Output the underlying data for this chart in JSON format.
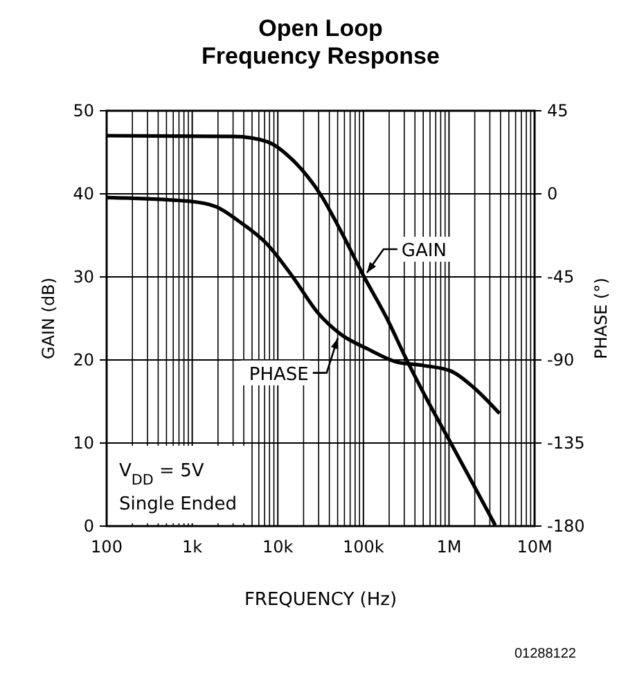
{
  "chart_data": {
    "type": "line",
    "title": "Open Loop Frequency Response",
    "xlabel": "FREQUENCY (Hz)",
    "ylabel": "GAIN (dB)",
    "y2label": "PHASE (°)",
    "log": "x",
    "grid": true,
    "line_style": "solid",
    "marker": "none",
    "xlim": [
      100,
      10000000
    ],
    "xticks": [
      100,
      {
        "value": 1000,
        "label": "1k"
      },
      {
        "value": 10000,
        "label": "10k"
      },
      {
        "value": 100000,
        "label": "100k"
      },
      {
        "value": 1000000,
        "label": "1M"
      },
      {
        "value": 10000000,
        "label": "10M"
      }
    ],
    "ylim": [
      0,
      50
    ],
    "yticks": [
      0,
      10,
      20,
      30,
      40,
      50
    ],
    "y2lim": [
      -180,
      45
    ],
    "y2ticks": [
      -180,
      -135,
      -90,
      -45,
      0,
      45
    ],
    "series": [
      {
        "name": "GAIN",
        "color": "#000000",
        "x": [
          100,
          3090,
          7400,
          15500,
          33000,
          54000,
          102000,
          186000,
          324000,
          562000,
          1050000,
          1950000,
          3470000
        ],
        "values": [
          47,
          46.9,
          46.3,
          43.9,
          39.6,
          35.6,
          30,
          25.1,
          19.9,
          15.1,
          10,
          4.9,
          0.1
        ]
      },
      {
        "name": "PHASE",
        "color": "#000000",
        "axis": "y2",
        "x": [
          100,
          912,
          1900,
          3550,
          7400,
          15500,
          28800,
          54000,
          112000,
          240000,
          500000,
          1050000,
          1950000,
          3890000
        ],
        "values": [
          -2,
          -4,
          -7,
          -15,
          -27,
          -46,
          -64,
          -76,
          -84,
          -91,
          -93,
          -96,
          -105,
          -119
        ]
      }
    ],
    "annotations": [
      "V$_{DD}$ = 5V",
      "Single Ended",
      "01288122"
    ]
  }
}
